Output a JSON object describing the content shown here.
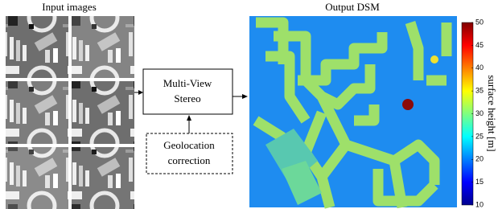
{
  "input": {
    "title": "Input images"
  },
  "mvs": {
    "lines": [
      "Multi-View",
      "Stereo"
    ]
  },
  "geolocation": {
    "lines": [
      "Geolocation",
      "correction"
    ]
  },
  "output": {
    "title": "Output DSM"
  },
  "colorbar": {
    "label": "surface height [m]",
    "lim": [
      10,
      50
    ],
    "ticks": [
      10,
      15,
      20,
      25,
      30,
      35,
      40,
      45,
      50
    ]
  }
}
